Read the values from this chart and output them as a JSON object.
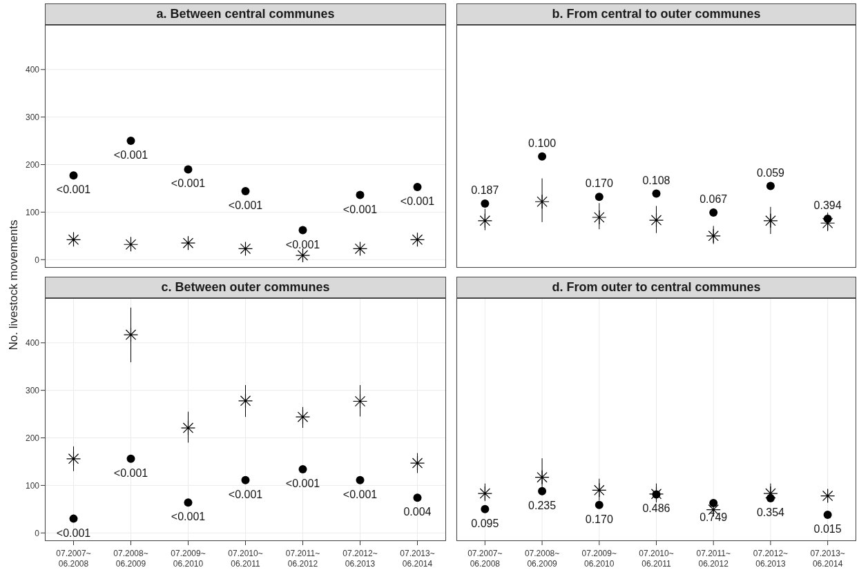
{
  "chart_data": [
    {
      "type": "scatter",
      "title": "a. Between central communes",
      "ylabel": "No. livestock movements",
      "categories": [
        "07.2007~ 06.2008",
        "07.2008~ 06.2009",
        "07.2009~ 06.2010",
        "07.2010~ 06.2011",
        "07.2011~ 06.2012",
        "07.2012~ 06.2013",
        "07.2013~ 06.2014"
      ],
      "ylim": [
        -17,
        494
      ],
      "yticks": [
        0,
        100,
        200,
        300,
        400
      ],
      "grid": true,
      "legend": false,
      "tick_labels": "y",
      "series": [
        {
          "color": "#000000",
          "marker": "cross",
          "values": [
            42,
            32,
            35,
            23,
            9,
            23,
            42
          ],
          "errors": [
            [
              32,
              58
            ],
            [
              24,
              48
            ],
            [
              26,
              48
            ],
            [
              15,
              33
            ],
            [
              3,
              16
            ],
            [
              15,
              32
            ],
            [
              32,
              52
            ]
          ]
        },
        {
          "color": "#000000",
          "marker": "circle",
          "values": [
            177,
            250,
            190,
            144,
            62,
            136,
            153
          ]
        }
      ],
      "annotations": [
        {
          "text": "<0.001",
          "x": "07.2007~ 06.2008",
          "y": 177
        },
        {
          "text": "<0.001",
          "x": "07.2008~ 06.2009",
          "y": 250
        },
        {
          "text": "<0.001",
          "x": "07.2009~ 06.2010",
          "y": 190
        },
        {
          "text": "<0.001",
          "x": "07.2010~ 06.2011",
          "y": 144
        },
        {
          "text": "<0.001",
          "x": "07.2011~ 06.2012",
          "y": 62
        },
        {
          "text": "<0.001",
          "x": "07.2012~ 06.2013",
          "y": 136
        },
        {
          "text": "<0.001",
          "x": "07.2013~ 06.2014",
          "y": 153
        }
      ]
    },
    {
      "type": "scatter",
      "title": "b. From central to outer communes",
      "categories": [
        "07.2007~ 06.2008",
        "07.2008~ 06.2009",
        "07.2009~ 06.2010",
        "07.2010~ 06.2011",
        "07.2011~ 06.2012",
        "07.2012~ 06.2013",
        "07.2013~ 06.2014"
      ],
      "ylim": [
        -17,
        494
      ],
      "yticks": [
        0,
        100,
        200,
        300,
        400
      ],
      "grid": true,
      "legend": false,
      "tick_labels": false,
      "series": [
        {
          "color": "#000000",
          "marker": "cross",
          "values": [
            82,
            122,
            89,
            83,
            50,
            82,
            77
          ],
          "errors": [
            [
              62,
              107
            ],
            [
              79,
              171
            ],
            [
              64,
              119
            ],
            [
              56,
              113
            ],
            [
              33,
              71
            ],
            [
              54,
              111
            ],
            [
              60,
              99
            ]
          ]
        },
        {
          "color": "#000000",
          "marker": "circle",
          "values": [
            118,
            217,
            132,
            139,
            99,
            155,
            86
          ]
        }
      ],
      "annotations": [
        {
          "text": "0.187",
          "x": "07.2007~ 06.2008",
          "y": 118
        },
        {
          "text": "0.100",
          "x": "07.2008~ 06.2009",
          "y": 217
        },
        {
          "text": "0.170",
          "x": "07.2009~ 06.2010",
          "y": 132
        },
        {
          "text": "0.108",
          "x": "07.2010~ 06.2011",
          "y": 139
        },
        {
          "text": "0.067",
          "x": "07.2011~ 06.2012",
          "y": 99
        },
        {
          "text": "0.059",
          "x": "07.2012~ 06.2013",
          "y": 155
        },
        {
          "text": "0.394",
          "x": "07.2013~ 06.2014",
          "y": 86
        }
      ]
    },
    {
      "type": "scatter",
      "title": "c. Between outer communes",
      "categories": [
        "07.2007~ 06.2008",
        "07.2008~ 06.2009",
        "07.2009~ 06.2010",
        "07.2010~ 06.2011",
        "07.2011~ 06.2012",
        "07.2012~ 06.2013",
        "07.2013~ 06.2014"
      ],
      "ylim": [
        -17,
        494
      ],
      "yticks": [
        0,
        100,
        200,
        300,
        400
      ],
      "grid": true,
      "legend": false,
      "series": [
        {
          "color": "#000000",
          "marker": "cross",
          "values": [
            156,
            417,
            221,
            278,
            244,
            277,
            147
          ],
          "errors": [
            [
              130,
              182
            ],
            [
              359,
              474
            ],
            [
              190,
              255
            ],
            [
              244,
              311
            ],
            [
              221,
              265
            ],
            [
              245,
              311
            ],
            [
              126,
              168
            ]
          ]
        },
        {
          "color": "#000000",
          "marker": "circle",
          "values": [
            30,
            156,
            64,
            111,
            134,
            111,
            74
          ]
        }
      ],
      "annotations": [
        {
          "text": "<0.001",
          "x": "07.2007~ 06.2008",
          "y": 30
        },
        {
          "text": "<0.001",
          "x": "07.2008~ 06.2009",
          "y": 156
        },
        {
          "text": "<0.001",
          "x": "07.2009~ 06.2010",
          "y": 64
        },
        {
          "text": "<0.001",
          "x": "07.2010~ 06.2011",
          "y": 111
        },
        {
          "text": "<0.001",
          "x": "07.2011~ 06.2012",
          "y": 134
        },
        {
          "text": "<0.001",
          "x": "07.2012~ 06.2013",
          "y": 111
        },
        {
          "text": "0.004",
          "x": "07.2013~ 06.2014",
          "y": 74
        }
      ]
    },
    {
      "type": "scatter",
      "title": "d. From outer to central communes",
      "categories": [
        "07.2007~ 06.2008",
        "07.2008~ 06.2009",
        "07.2009~ 06.2010",
        "07.2010~ 06.2011",
        "07.2011~ 06.2012",
        "07.2012~ 06.2013",
        "07.2013~ 06.2014"
      ],
      "ylim": [
        -17,
        494
      ],
      "yticks": [
        0,
        100,
        200,
        300,
        400
      ],
      "grid": true,
      "legend": false,
      "tick_labels": "x",
      "series": [
        {
          "color": "#000000",
          "marker": "cross",
          "values": [
            83,
            117,
            90,
            82,
            49,
            83,
            78
          ],
          "errors": [
            [
              67,
              104
            ],
            [
              79,
              157
            ],
            [
              68,
              114
            ],
            [
              64,
              104
            ],
            [
              35,
              49
            ],
            [
              68,
              104
            ],
            null
          ]
        },
        {
          "color": "#000000",
          "marker": "circle",
          "values": [
            50,
            88,
            59,
            81,
            63,
            73,
            38
          ]
        }
      ],
      "annotations": [
        {
          "text": "0.095",
          "x": "07.2007~ 06.2008",
          "y": 50
        },
        {
          "text": "0.235",
          "x": "07.2008~ 06.2009",
          "y": 88
        },
        {
          "text": "0.170",
          "x": "07.2009~ 06.2010",
          "y": 59
        },
        {
          "text": "0.486",
          "x": "07.2010~ 06.2011",
          "y": 81
        },
        {
          "text": "0.749",
          "x": "07.2011~ 06.2012",
          "y": 63
        },
        {
          "text": "0.354",
          "x": "07.2012~ 06.2013",
          "y": 73
        },
        {
          "text": "0.015",
          "x": "07.2013~ 06.2014",
          "y": 38
        }
      ]
    }
  ]
}
